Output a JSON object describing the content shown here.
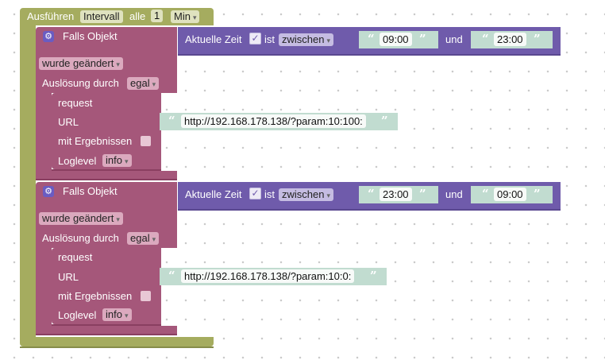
{
  "outer": {
    "run_label": "Ausführen",
    "mode_value": "Intervall",
    "every_label": "alle",
    "interval_value": "1",
    "unit_value": "Min"
  },
  "blocks": [
    {
      "if_object_label": "Falls Objekt",
      "changed_value": "wurde geändert",
      "trigger_label": "Auslösung durch",
      "trigger_value": "egal",
      "time_label": "Aktuelle Zeit",
      "time_checked": "✓",
      "is_label": "ist",
      "between_value": "zwischen",
      "from_time": "09:00",
      "and_label": "und",
      "to_time": "23:00",
      "request_label": "request",
      "url_label": "URL",
      "url_value": "http://192.168.178.138/?param:10:100:",
      "results_label": "mit Ergebnissen",
      "loglevel_label": "Loglevel",
      "loglevel_value": "info"
    },
    {
      "if_object_label": "Falls Objekt",
      "changed_value": "wurde geändert",
      "trigger_label": "Auslösung durch",
      "trigger_value": "egal",
      "time_label": "Aktuelle Zeit",
      "time_checked": "✓",
      "is_label": "ist",
      "between_value": "zwischen",
      "from_time": "23:00",
      "and_label": "und",
      "to_time": "09:00",
      "request_label": "request",
      "url_label": "URL",
      "url_value": "http://192.168.178.138/?param:10:0:",
      "results_label": "mit Ergebnissen",
      "loglevel_label": "Loglevel",
      "loglevel_value": "info"
    }
  ],
  "dropdown_arrow": "▾",
  "quote_open": "“",
  "quote_close": "”",
  "colors": {
    "olive": "#a5ac5f",
    "pink": "#a5577a",
    "purple": "#6f5bab",
    "teal": "#c1dcd0"
  }
}
